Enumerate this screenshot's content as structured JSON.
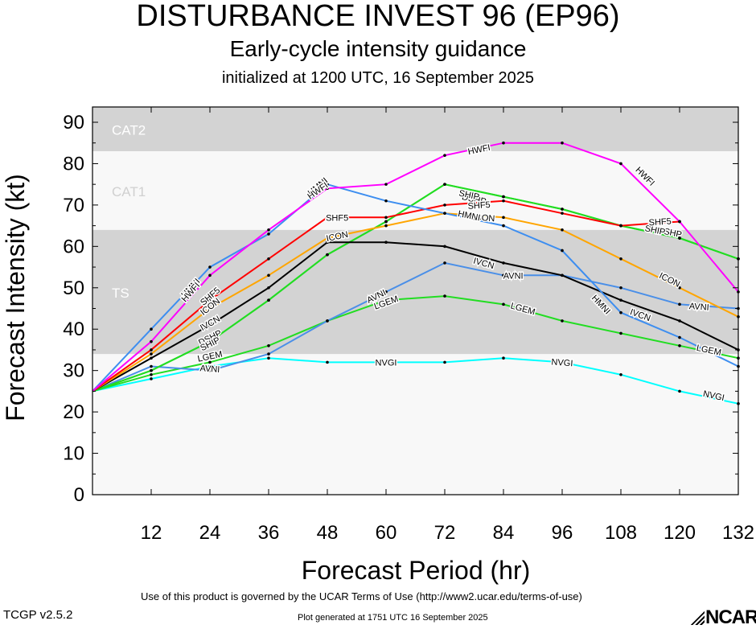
{
  "header": {
    "title": "DISTURBANCE INVEST 96 (EP96)",
    "subtitle": "Early-cycle intensity guidance",
    "init_line": "initialized at 1200 UTC, 16 September 2025"
  },
  "footer": {
    "terms": "Use of this product is governed by the UCAR Terms of Use (http://www2.ucar.edu/terms-of-use)",
    "generated": "Plot generated at 1751 UTC   16 September 2025",
    "version": "TCGP v2.5.2",
    "logo_text": "NCAR"
  },
  "chart_data": {
    "type": "line",
    "xlabel": "Forecast Period (hr)",
    "ylabel": "Forecast Intensity (kt)",
    "xlim": [
      0,
      132
    ],
    "ylim": [
      0,
      90
    ],
    "xticks": [
      12,
      24,
      36,
      48,
      60,
      72,
      84,
      96,
      108,
      120,
      132
    ],
    "yticks": [
      0,
      10,
      20,
      30,
      40,
      50,
      60,
      70,
      80,
      90
    ],
    "grid": false,
    "bands": [
      {
        "label": "TS",
        "from": 34,
        "to": 64,
        "color": "#d3d3d3"
      },
      {
        "label": "CAT1",
        "from": 64,
        "to": 83,
        "color": "#f8f8f8"
      },
      {
        "label": "CAT2",
        "from": 83,
        "to": 96,
        "color": "#d3d3d3"
      }
    ],
    "background_band": {
      "from": 0,
      "to": 34,
      "color": "#f8f8f8"
    },
    "series": [
      {
        "name": "NVGI",
        "color": "#00ffff",
        "points": [
          [
            0,
            25
          ],
          [
            12,
            28
          ],
          [
            24,
            31
          ],
          [
            36,
            33
          ],
          [
            48,
            32
          ],
          [
            60,
            32
          ],
          [
            72,
            32
          ],
          [
            84,
            33
          ],
          [
            96,
            32
          ],
          [
            108,
            29
          ],
          [
            120,
            25
          ],
          [
            132,
            22
          ]
        ],
        "labels": [
          [
            60,
            32
          ],
          [
            96,
            32
          ],
          [
            127,
            24
          ]
        ]
      },
      {
        "name": "LGEM",
        "color": "#22dd22",
        "points": [
          [
            0,
            25
          ],
          [
            12,
            29
          ],
          [
            24,
            32
          ],
          [
            36,
            36
          ],
          [
            48,
            42
          ],
          [
            60,
            47
          ],
          [
            72,
            48
          ],
          [
            84,
            46
          ],
          [
            96,
            42
          ],
          [
            108,
            39
          ],
          [
            120,
            36
          ],
          [
            132,
            33
          ]
        ],
        "labels": [
          [
            24,
            33.5
          ],
          [
            60,
            46.5
          ],
          [
            88,
            45
          ],
          [
            126,
            35
          ]
        ]
      },
      {
        "name": "AVNI",
        "color": "#4a8fe8",
        "points": [
          [
            0,
            25
          ],
          [
            12,
            31
          ],
          [
            24,
            30
          ],
          [
            36,
            34
          ],
          [
            48,
            42
          ],
          [
            60,
            49
          ],
          [
            72,
            56
          ],
          [
            84,
            53
          ],
          [
            96,
            53
          ],
          [
            108,
            50
          ],
          [
            120,
            46
          ],
          [
            132,
            45
          ]
        ],
        "labels": [
          [
            24,
            30.5
          ],
          [
            58,
            48
          ],
          [
            86,
            53
          ],
          [
            124,
            45.5
          ]
        ]
      },
      {
        "name": "DSHP",
        "color": "#22dd22",
        "points": [
          [
            0,
            25
          ],
          [
            12,
            30
          ],
          [
            24,
            37
          ],
          [
            36,
            47
          ],
          [
            48,
            58
          ],
          [
            60,
            66
          ],
          [
            72,
            75
          ],
          [
            84,
            72
          ],
          [
            96,
            69
          ],
          [
            108,
            65
          ],
          [
            120,
            62
          ],
          [
            132,
            57
          ]
        ],
        "labels": [
          [
            24,
            38
          ],
          [
            78,
            71.5
          ],
          [
            118,
            63.5
          ]
        ]
      },
      {
        "name": "SHIP",
        "color": "#22dd22",
        "points": [
          [
            0,
            25
          ],
          [
            12,
            30
          ],
          [
            24,
            37
          ],
          [
            36,
            47
          ],
          [
            48,
            58
          ],
          [
            60,
            66
          ],
          [
            72,
            75
          ],
          [
            84,
            72
          ],
          [
            96,
            69
          ],
          [
            108,
            65
          ],
          [
            120,
            62
          ],
          [
            132,
            57
          ]
        ],
        "labels": [
          [
            24,
            36.5
          ],
          [
            77,
            72.5
          ],
          [
            115,
            64
          ]
        ]
      },
      {
        "name": "IVCN",
        "color": "#000000",
        "points": [
          [
            0,
            25
          ],
          [
            12,
            33
          ],
          [
            24,
            41
          ],
          [
            36,
            50
          ],
          [
            48,
            61
          ],
          [
            60,
            61
          ],
          [
            72,
            60
          ],
          [
            84,
            56
          ],
          [
            96,
            53
          ],
          [
            108,
            47
          ],
          [
            120,
            42
          ],
          [
            132,
            35
          ]
        ],
        "labels": [
          [
            24,
            41.5
          ],
          [
            80,
            56
          ],
          [
            112,
            43.5
          ]
        ]
      },
      {
        "name": "ICON",
        "color": "#ffa500",
        "points": [
          [
            0,
            25
          ],
          [
            12,
            34
          ],
          [
            24,
            45
          ],
          [
            36,
            53
          ],
          [
            48,
            62
          ],
          [
            60,
            65
          ],
          [
            72,
            68
          ],
          [
            84,
            67
          ],
          [
            96,
            64
          ],
          [
            108,
            57
          ],
          [
            120,
            50
          ],
          [
            132,
            43
          ]
        ],
        "labels": [
          [
            24,
            45.5
          ],
          [
            50,
            62.5
          ],
          [
            80,
            67
          ],
          [
            118,
            52
          ]
        ]
      },
      {
        "name": "SHF5",
        "color": "#ff0000",
        "points": [
          [
            0,
            25
          ],
          [
            12,
            35
          ],
          [
            24,
            47
          ],
          [
            36,
            57
          ],
          [
            48,
            67
          ],
          [
            60,
            67
          ],
          [
            72,
            70
          ],
          [
            84,
            71
          ],
          [
            96,
            68
          ],
          [
            108,
            65
          ],
          [
            114,
            65.5
          ],
          [
            120,
            66
          ]
        ],
        "labels": [
          [
            24,
            48
          ],
          [
            50,
            67
          ],
          [
            79,
            70
          ],
          [
            116,
            66
          ]
        ]
      },
      {
        "name": "HMNI",
        "color": "#3d8ef0",
        "points": [
          [
            0,
            25
          ],
          [
            12,
            40
          ],
          [
            24,
            55
          ],
          [
            36,
            63
          ],
          [
            48,
            75
          ],
          [
            60,
            71
          ],
          [
            72,
            68
          ],
          [
            84,
            65
          ],
          [
            96,
            59
          ],
          [
            108,
            44
          ],
          [
            120,
            38
          ],
          [
            132,
            31
          ]
        ],
        "labels": [
          [
            20,
            50
          ],
          [
            46,
            74.5
          ],
          [
            77,
            67.5
          ],
          [
            104,
            46
          ]
        ]
      },
      {
        "name": "HWFI",
        "color": "#ff00ff",
        "points": [
          [
            0,
            25
          ],
          [
            12,
            37
          ],
          [
            24,
            53
          ],
          [
            36,
            64
          ],
          [
            48,
            74
          ],
          [
            60,
            75
          ],
          [
            72,
            82
          ],
          [
            84,
            85
          ],
          [
            96,
            85
          ],
          [
            108,
            80
          ],
          [
            120,
            66
          ],
          [
            132,
            49
          ]
        ],
        "labels": [
          [
            20,
            49
          ],
          [
            46,
            73.5
          ],
          [
            79,
            83.5
          ],
          [
            113,
            77
          ]
        ]
      }
    ]
  }
}
